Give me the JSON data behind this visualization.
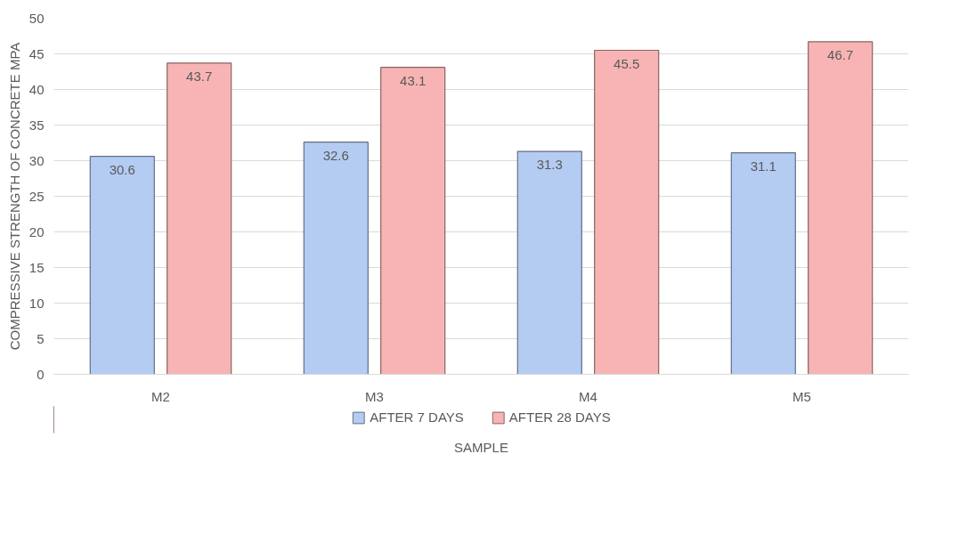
{
  "chart_data": {
    "type": "bar",
    "xlabel": "SAMPLE",
    "ylabel": "COMPRESSIVE STRENGTH OF CONCRETE MPA",
    "categories": [
      "M2",
      "M3",
      "M4",
      "M5"
    ],
    "series": [
      {
        "name": "AFTER 7 DAYS",
        "color": "#b4cbf2",
        "values": [
          30.6,
          32.6,
          31.3,
          31.1
        ]
      },
      {
        "name": "AFTER 28 DAYS",
        "color": "#f8b4b4",
        "values": [
          43.7,
          43.1,
          45.5,
          46.7
        ]
      }
    ],
    "ylim": [
      0,
      50
    ],
    "yticks": [
      0,
      5,
      10,
      15,
      20,
      25,
      30,
      35,
      40,
      45,
      50
    ],
    "grid": "y",
    "legend": "bottom",
    "data_labels": true
  }
}
